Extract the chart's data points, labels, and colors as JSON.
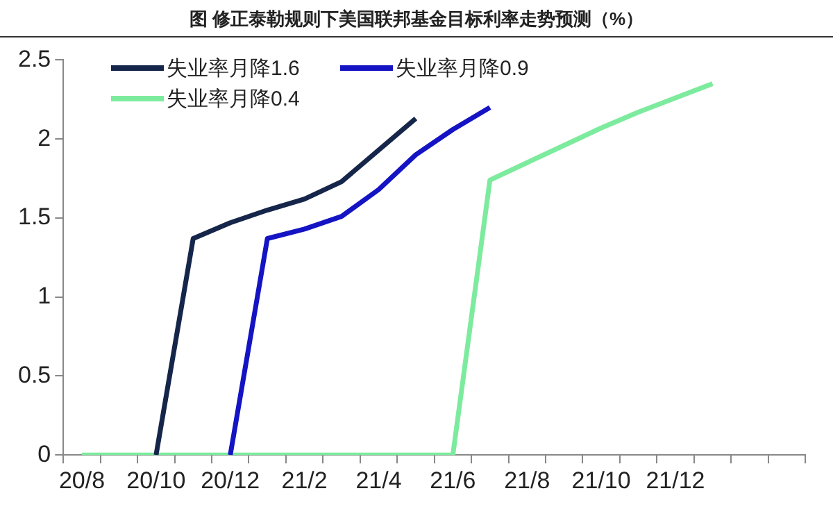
{
  "chart_data": {
    "type": "line",
    "title": "图  修正泰勒规则下美国联邦基金目标利率走势预测（%）",
    "categories": [
      "20/8",
      null,
      "20/10",
      null,
      "20/12",
      null,
      "21/2",
      null,
      "21/4",
      null,
      "21/6",
      null,
      "21/8",
      null,
      "21/10",
      null,
      "21/12",
      null,
      null,
      null
    ],
    "ylim": [
      0,
      2.5
    ],
    "yticks": [
      0,
      0.5,
      1,
      1.5,
      2,
      2.5
    ],
    "grid": false,
    "legend": "top left",
    "marker": "none",
    "line_style": "solid",
    "series": [
      {
        "name": "失业率月降1.6",
        "color": "#15264a",
        "values": [
          null,
          null,
          0,
          1.37,
          1.47,
          1.55,
          1.62,
          1.73,
          1.93,
          2.13,
          null,
          null,
          null,
          null,
          null,
          null,
          null,
          null,
          null,
          null
        ]
      },
      {
        "name": "失业率月降0.9",
        "color": "#1414c4",
        "values": [
          null,
          null,
          null,
          null,
          0,
          1.37,
          1.43,
          1.51,
          1.68,
          1.9,
          2.06,
          2.2,
          null,
          null,
          null,
          null,
          null,
          null,
          null,
          null
        ]
      },
      {
        "name": "失业率月降0.4",
        "color": "#7deb9e",
        "values": [
          0,
          0,
          0,
          0,
          0,
          0,
          0,
          0,
          0,
          0,
          0,
          1.74,
          1.85,
          1.96,
          2.07,
          2.17,
          2.26,
          2.35,
          null,
          null
        ]
      }
    ]
  }
}
